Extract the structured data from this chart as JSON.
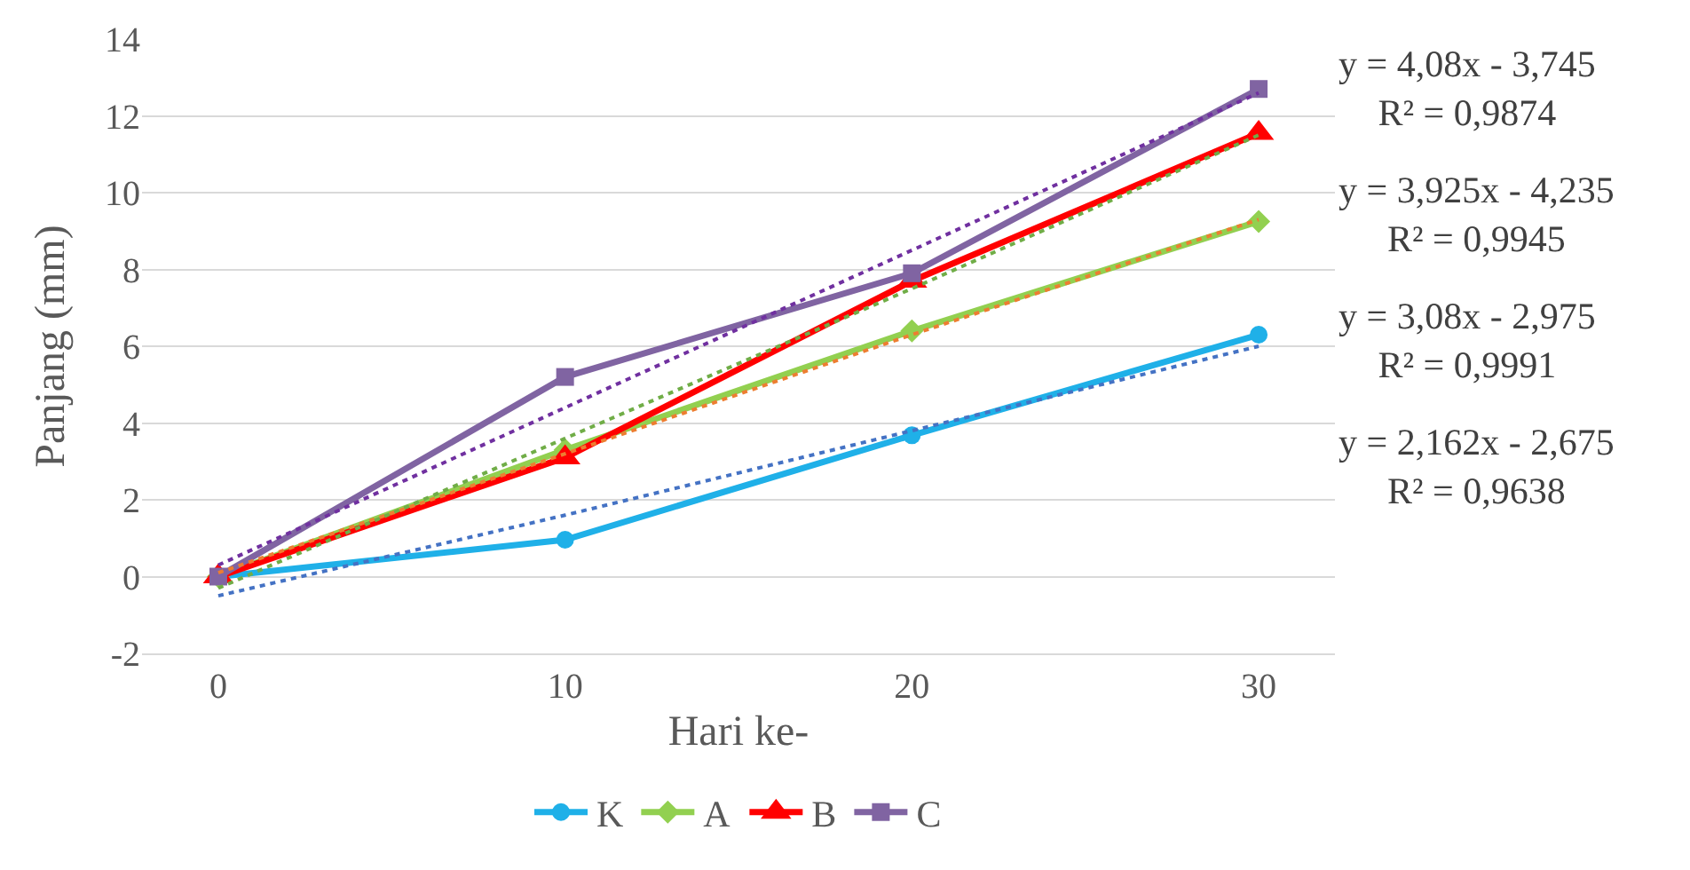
{
  "chart_data": {
    "type": "line",
    "xlabel": "Hari ke-",
    "ylabel": "Panjang (mm)",
    "categories": [
      "0",
      "10",
      "20",
      "30"
    ],
    "series": [
      {
        "name": "K",
        "color": "#1fb0e8",
        "marker": "circle",
        "values": [
          0,
          0.96,
          3.68,
          6.3
        ]
      },
      {
        "name": "A",
        "color": "#92d050",
        "marker": "diamond",
        "values": [
          0,
          3.3,
          6.4,
          9.25
        ]
      },
      {
        "name": "B",
        "color": "#ff0000",
        "marker": "triangle",
        "values": [
          0,
          3.1,
          7.7,
          11.55
        ]
      },
      {
        "name": "C",
        "color": "#8064a2",
        "marker": "square",
        "values": [
          0,
          5.2,
          7.9,
          12.7
        ]
      },
      {
        "type": "line",
        "line_style": "dotted",
        "marker": "none",
        "color": "#4472c4",
        "x": [
          "0",
          "10",
          "20",
          "30"
        ],
        "values": [
          -0.5,
          1.6,
          3.8,
          6.0
        ]
      },
      {
        "type": "line",
        "line_style": "dotted",
        "marker": "none",
        "color": "#ed7d31",
        "x": [
          "0",
          "10",
          "20",
          "30"
        ],
        "values": [
          0.1,
          3.2,
          6.3,
          9.3
        ]
      },
      {
        "type": "line",
        "line_style": "dotted",
        "marker": "none",
        "color": "#70ad47",
        "x": [
          "0",
          "10",
          "20",
          "30"
        ],
        "values": [
          -0.3,
          3.6,
          7.5,
          11.5
        ]
      },
      {
        "type": "line",
        "line_style": "dotted",
        "marker": "none",
        "color": "#7030a0",
        "x": [
          "0",
          "10",
          "20",
          "30"
        ],
        "values": [
          0.3,
          4.4,
          8.5,
          12.6
        ]
      }
    ],
    "ylim": [
      -2,
      14
    ],
    "yticks": [
      -2,
      0,
      2,
      4,
      6,
      8,
      10,
      12,
      14
    ],
    "grid": "y",
    "legend": "bottom",
    "annotations": [
      "y = 4,08x - 3,745\nR² = 0,9874",
      "y = 3,925x - 4,235\nR² = 0,9945",
      "y = 3,08x - 2,975\nR² = 0,9991",
      "y = 2,162x - 2,675\nR² = 0,9638"
    ]
  }
}
